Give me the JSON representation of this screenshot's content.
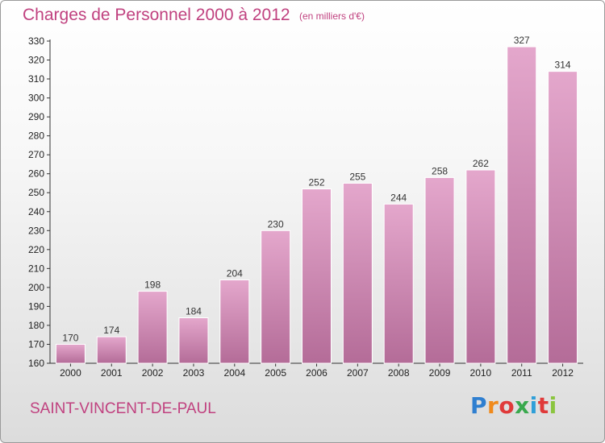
{
  "header": {
    "title": "Charges de Personnel 2000 à 2012",
    "unit_note": "(en milliers d'€)"
  },
  "footer": {
    "commune": "SAINT-VINCENT-DE-PAUL",
    "brand": "Proxiti"
  },
  "colors": {
    "bar_top": "#e4a7cc",
    "bar_bottom": "#b46c98",
    "text_accent": "#c0417f"
  },
  "chart_data": {
    "type": "bar",
    "title": "Charges de Personnel 2000 à 2012",
    "subtitle": "(en milliers d'€)",
    "categories": [
      "2000",
      "2001",
      "2002",
      "2003",
      "2004",
      "2005",
      "2006",
      "2007",
      "2008",
      "2009",
      "2010",
      "2011",
      "2012"
    ],
    "values": [
      170,
      174,
      198,
      184,
      204,
      230,
      252,
      255,
      244,
      258,
      262,
      327,
      314
    ],
    "ylim": [
      160,
      330
    ],
    "ytick_step": 10,
    "grid": false,
    "legend": "none"
  }
}
